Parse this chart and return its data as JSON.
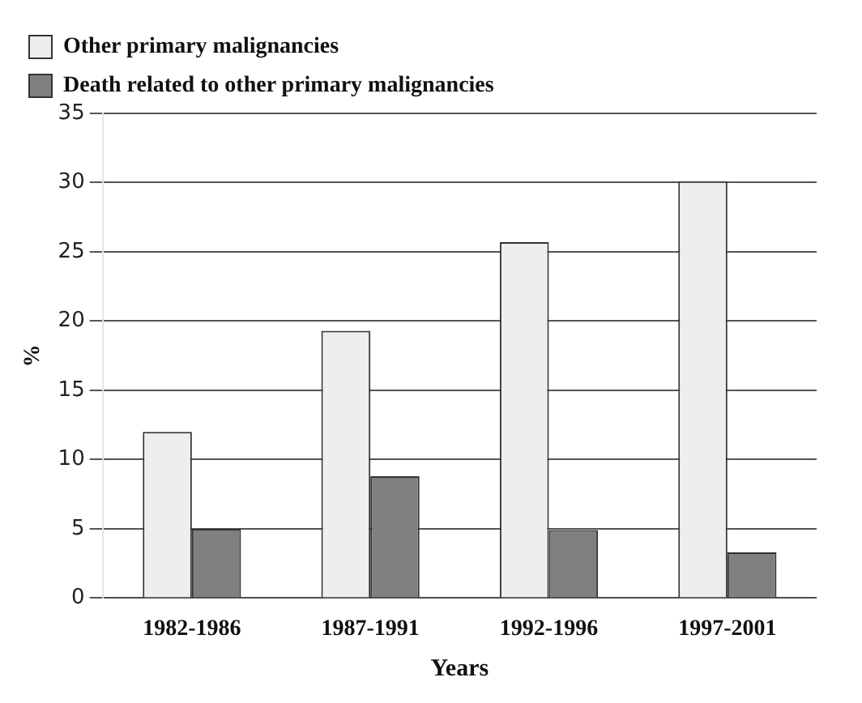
{
  "chart_data": {
    "type": "bar",
    "xlabel": "Years",
    "ylabel": "%",
    "categories": [
      "1982-1986",
      "1987-1991",
      "1992-1996",
      "1997-2001"
    ],
    "series": [
      {
        "name": "Other primary malignancies",
        "color": "#eeeeee",
        "values": [
          12,
          19.3,
          25.7,
          30.1
        ]
      },
      {
        "name": "Death related to other primary malignancies",
        "color": "#808080",
        "values": [
          5,
          8.8,
          4.9,
          3.3
        ]
      }
    ],
    "ylim": [
      0,
      35
    ],
    "yticks": [
      0,
      5,
      10,
      15,
      20,
      25,
      30,
      35
    ],
    "grid": "y",
    "legend": "top left"
  }
}
